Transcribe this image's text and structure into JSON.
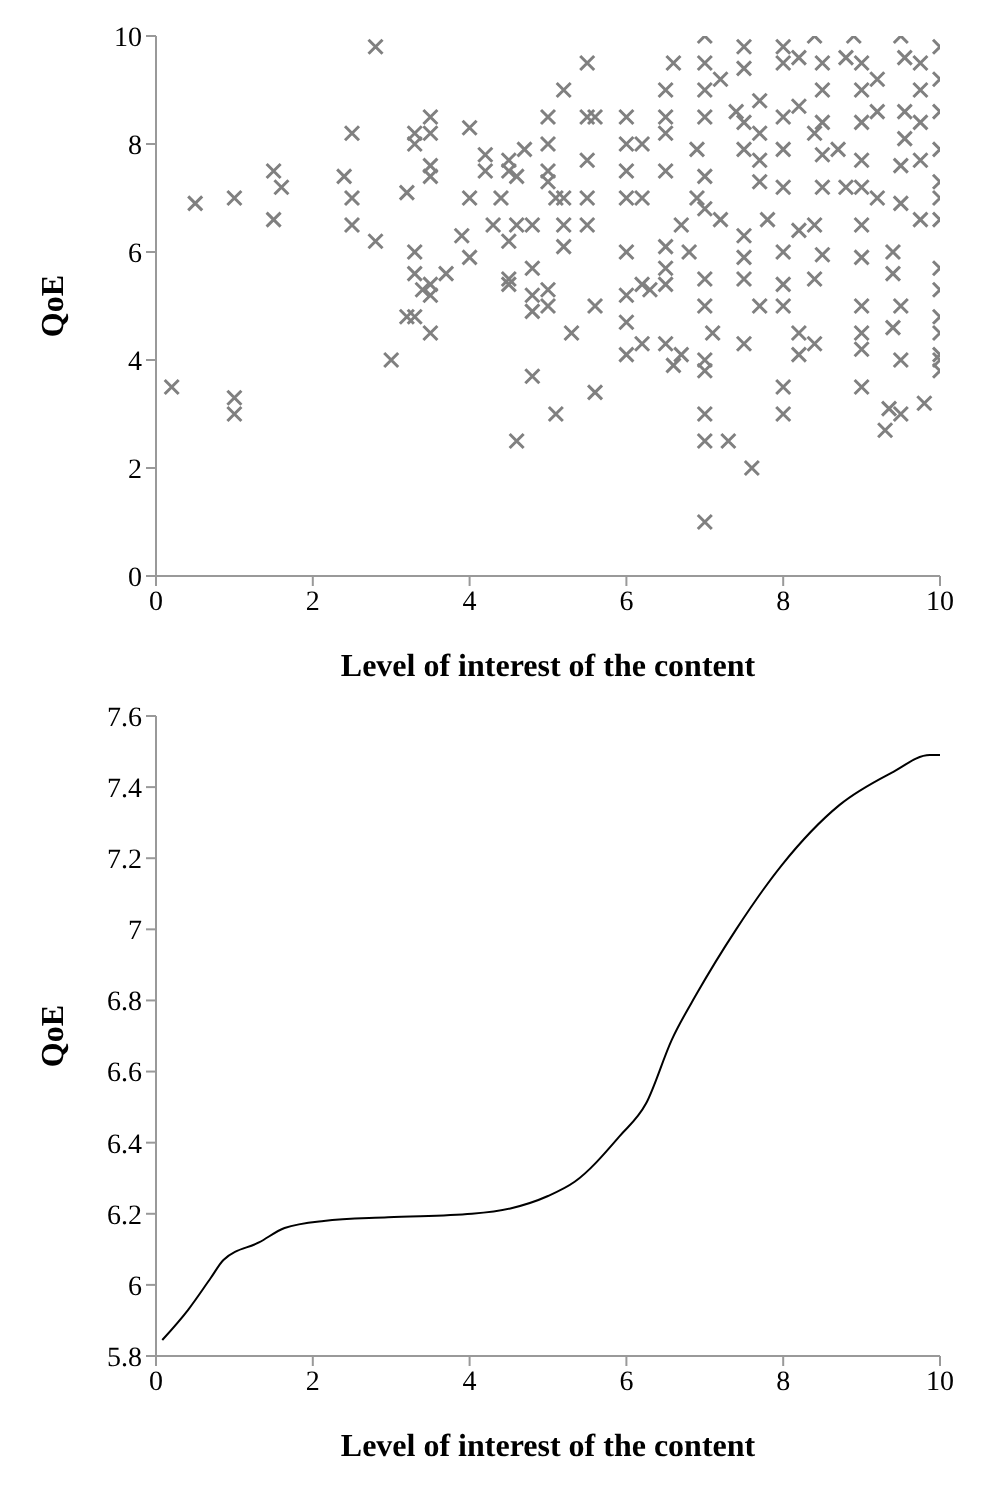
{
  "chart_data": [
    {
      "type": "scatter",
      "xlabel": "Level of interest of the content",
      "ylabel": "QoE",
      "xlim": [
        0,
        10
      ],
      "ylim": [
        0,
        10
      ],
      "xticks": [
        0,
        2,
        4,
        6,
        8,
        10
      ],
      "yticks": [
        0,
        2,
        4,
        6,
        8,
        10
      ],
      "grid": false,
      "legend": false,
      "marker": "cross",
      "series": [
        {
          "color": "#808080",
          "x": [
            0.2,
            0.5,
            1.0,
            1.0,
            1.0,
            1.5,
            1.6,
            1.5,
            2.4,
            2.5,
            2.5,
            2.5,
            2.8,
            2.8,
            3.0,
            3.2,
            3.2,
            3.3,
            3.3,
            3.3,
            3.3,
            3.3,
            3.5,
            3.5,
            3.5,
            3.5,
            3.4,
            3.5,
            3.5,
            3.5,
            3.7,
            3.9,
            4.0,
            4.0,
            4.0,
            4.2,
            4.2,
            4.3,
            4.4,
            4.5,
            4.5,
            4.5,
            4.5,
            4.5,
            4.6,
            4.6,
            4.6,
            4.7,
            4.8,
            4.8,
            4.8,
            4.8,
            4.8,
            5.0,
            5.0,
            5.0,
            5.0,
            5.0,
            5.0,
            5.1,
            5.1,
            5.5,
            5.2,
            5.2,
            5.5,
            5.6,
            5.5,
            5.5,
            5.2,
            5.5,
            5.2,
            5.6,
            5.3,
            5.6,
            6.0,
            6.0,
            6.0,
            6.0,
            6.0,
            6.0,
            6.0,
            6.0,
            6.2,
            6.2,
            6.2,
            6.3,
            6.2,
            6.5,
            6.6,
            6.5,
            6.5,
            6.5,
            6.5,
            6.5,
            6.5,
            6.5,
            6.6,
            6.7,
            6.7,
            6.8,
            6.9,
            6.9,
            7.0,
            7.0,
            7.0,
            7.0,
            7.0,
            7.0,
            7.0,
            7.0,
            7.0,
            7.0,
            7.0,
            7.0,
            7.0,
            7.3,
            7.1,
            7.2,
            7.2,
            7.5,
            7.5,
            7.4,
            7.5,
            7.5,
            7.5,
            7.5,
            7.5,
            7.5,
            7.6,
            7.7,
            7.7,
            7.7,
            7.7,
            7.7,
            7.8,
            8.0,
            8.0,
            8.0,
            8.0,
            8.0,
            8.0,
            8.0,
            8.0,
            8.0,
            8.0,
            8.2,
            8.4,
            8.2,
            8.2,
            8.2,
            8.4,
            8.2,
            8.4,
            8.4,
            8.5,
            8.5,
            8.5,
            8.5,
            8.5,
            8.5,
            8.4,
            8.8,
            8.9,
            9.0,
            9.0,
            9.0,
            9.0,
            9.0,
            9.0,
            9.0,
            9.0,
            9.0,
            9.0,
            9.0,
            8.8,
            8.7,
            9.2,
            9.2,
            9.2,
            9.4,
            9.4,
            9.4,
            9.3,
            9.35,
            9.5,
            9.5,
            9.55,
            9.55,
            9.55,
            9.5,
            9.5,
            9.5,
            9.5,
            9.75,
            9.75,
            9.75,
            9.75,
            9.75,
            9.8,
            10.0,
            10.0,
            10.0,
            10.0,
            10.0,
            10.0,
            10.0,
            10.0,
            10.0,
            10.0,
            10.0,
            10.0,
            10.0,
            10.0
          ],
          "values": [
            3.5,
            6.9,
            7.0,
            3.3,
            3.0,
            7.5,
            7.2,
            6.6,
            7.4,
            8.2,
            7.0,
            6.5,
            9.8,
            6.2,
            4.0,
            7.1,
            4.8,
            4.8,
            8.2,
            8.0,
            6.0,
            5.6,
            8.5,
            8.2,
            7.6,
            7.4,
            5.3,
            5.4,
            5.2,
            4.5,
            5.6,
            6.3,
            8.3,
            7.0,
            5.9,
            7.8,
            7.5,
            6.5,
            7.0,
            7.7,
            7.5,
            6.2,
            5.5,
            5.4,
            7.4,
            6.5,
            2.5,
            7.9,
            6.5,
            5.7,
            5.2,
            4.9,
            3.7,
            8.5,
            8.0,
            7.5,
            7.3,
            5.3,
            5.0,
            3.0,
            7.0,
            9.5,
            9.0,
            7.0,
            8.5,
            8.5,
            7.7,
            7.0,
            6.5,
            6.5,
            6.1,
            5.0,
            4.5,
            3.4,
            8.5,
            8.0,
            7.5,
            7.0,
            6.0,
            5.2,
            4.7,
            4.1,
            8.0,
            7.0,
            5.4,
            5.3,
            4.3,
            4.3,
            9.5,
            9.0,
            8.5,
            8.2,
            7.5,
            6.1,
            5.7,
            5.4,
            3.9,
            4.1,
            6.5,
            6.0,
            7.0,
            7.9,
            10.0,
            9.5,
            9.0,
            8.5,
            7.4,
            6.8,
            5.5,
            5.0,
            4.0,
            3.8,
            3.0,
            2.5,
            1.0,
            2.5,
            4.5,
            6.6,
            9.2,
            9.8,
            9.4,
            8.6,
            8.4,
            7.9,
            6.3,
            5.9,
            5.5,
            4.3,
            2.0,
            8.8,
            8.2,
            7.7,
            7.3,
            5.0,
            6.6,
            9.8,
            9.5,
            8.5,
            7.9,
            7.2,
            6.0,
            5.4,
            5.0,
            3.5,
            3.0,
            9.6,
            10.0,
            8.7,
            4.5,
            4.1,
            4.3,
            6.4,
            6.5,
            5.5,
            9.5,
            9.0,
            8.4,
            7.8,
            7.2,
            5.95,
            8.2,
            9.6,
            10.0,
            9.5,
            9.0,
            8.4,
            7.7,
            7.2,
            6.5,
            5.9,
            5.0,
            4.5,
            4.2,
            3.5,
            7.2,
            7.9,
            7.0,
            8.6,
            9.2,
            6.0,
            5.6,
            4.6,
            2.7,
            3.1,
            3.0,
            10.0,
            9.6,
            8.6,
            8.1,
            7.6,
            6.9,
            4.0,
            5.0,
            9.5,
            9.0,
            8.4,
            7.7,
            6.6,
            3.2,
            9.8,
            9.2,
            8.6,
            7.9,
            7.3,
            7.0,
            6.6,
            5.7,
            5.3,
            4.8,
            4.5,
            4.1,
            3.8,
            4.0
          ]
        }
      ]
    },
    {
      "type": "line",
      "xlabel": "Level of interest of the content",
      "ylabel": "QoE",
      "xlim": [
        0,
        10
      ],
      "ylim": [
        5.8,
        7.6
      ],
      "xticks": [
        0,
        2,
        4,
        6,
        8,
        10
      ],
      "yticks": [
        5.8,
        6,
        6.2,
        6.4,
        6.6,
        6.8,
        7,
        7.2,
        7.4,
        7.6
      ],
      "grid": false,
      "legend": false,
      "marker": "none",
      "line_style": "solid",
      "series": [
        {
          "color": "#000000",
          "x": [
            0.08,
            0.41,
            0.7,
            0.86,
            1.32,
            1.64,
            2.14,
            2.96,
            4.03,
            4.52,
            5.0,
            5.34,
            5.92,
            6.25,
            6.58,
            6.9,
            7.4,
            7.98,
            8.72,
            9.38,
            9.87,
            10.0
          ],
          "values": [
            5.845,
            5.93,
            6.02,
            6.07,
            6.12,
            6.16,
            6.18,
            6.19,
            6.2,
            6.215,
            6.25,
            6.29,
            6.42,
            6.51,
            6.69,
            6.82,
            7.0,
            7.18,
            7.35,
            7.44,
            7.49,
            7.49
          ]
        }
      ]
    }
  ]
}
